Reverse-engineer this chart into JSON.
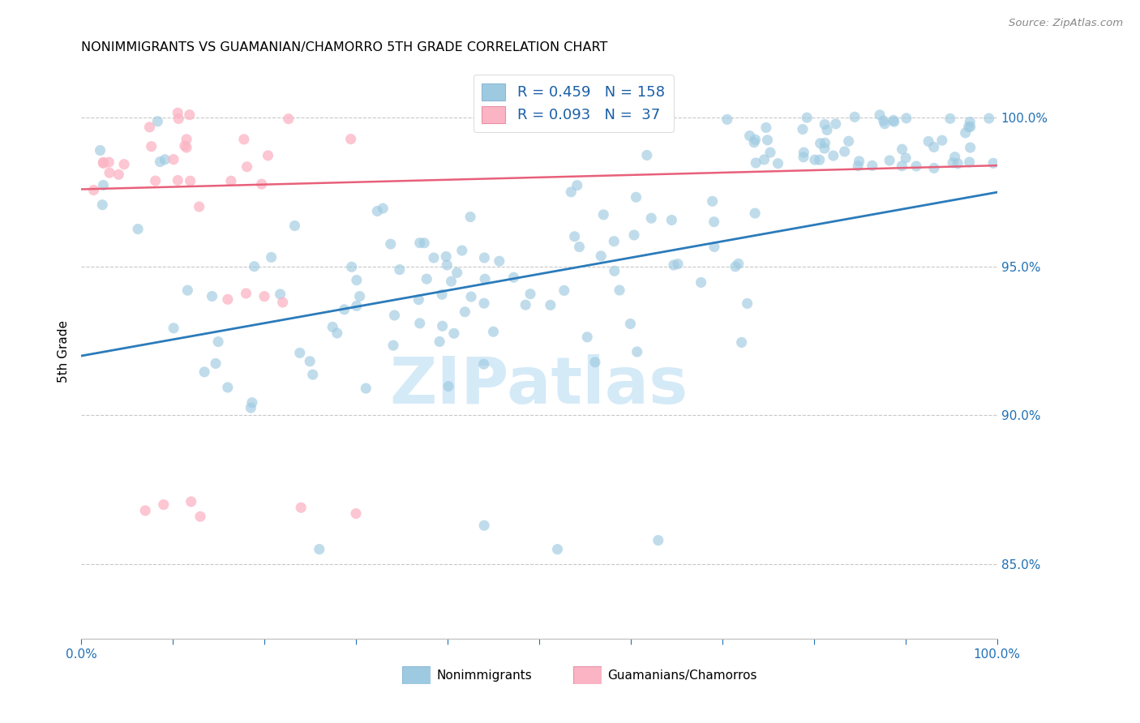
{
  "title": "NONIMMIGRANTS VS GUAMANIAN/CHAMORRO 5TH GRADE CORRELATION CHART",
  "source": "Source: ZipAtlas.com",
  "ylabel": "5th Grade",
  "blue_R": 0.459,
  "blue_N": 158,
  "pink_R": 0.093,
  "pink_N": 37,
  "blue_color": "#9ecae1",
  "pink_color": "#fbb4c4",
  "blue_line_color": "#2b7bba",
  "pink_line_color": "#e8607a",
  "ytick_labels": [
    "85.0%",
    "90.0%",
    "95.0%",
    "100.0%"
  ],
  "ytick_values": [
    0.85,
    0.9,
    0.95,
    1.0
  ],
  "xlim": [
    0.0,
    1.0
  ],
  "ylim": [
    0.825,
    1.018
  ],
  "watermark": "ZIPatlas",
  "blue_line_start_y": 0.92,
  "blue_line_end_y": 0.975,
  "pink_line_start_y": 0.976,
  "pink_line_end_y": 0.984,
  "legend_R_color": "#000000",
  "legend_N_color": "#2171b5"
}
